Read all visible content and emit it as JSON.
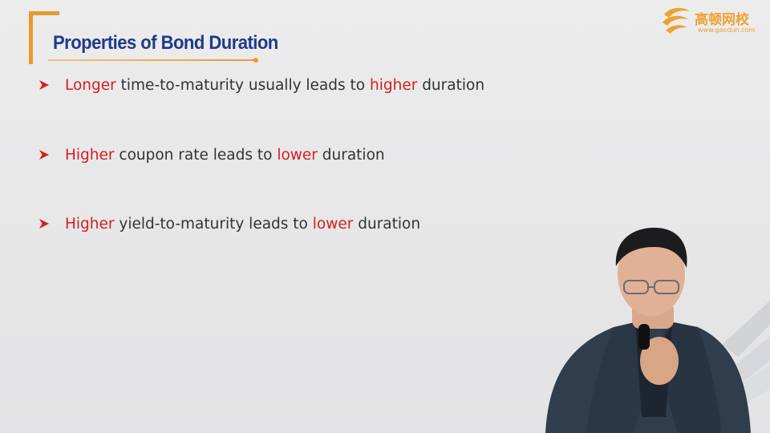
{
  "slide": {
    "title": "Properties of Bond Duration",
    "accent_color": "#e89a2a",
    "title_color": "#1f3b88",
    "emphasis_color": "#d31f1f"
  },
  "logo": {
    "name": "高顿网校",
    "url": "www.gaodun.com"
  },
  "bullets": [
    {
      "marker": "arrow-bullet-icon",
      "parts": [
        {
          "text": "Longer",
          "emphasis": true
        },
        {
          "text": " time-to-maturity usually leads to ",
          "emphasis": false
        },
        {
          "text": "higher",
          "emphasis": true
        },
        {
          "text": " duration",
          "emphasis": false
        }
      ]
    },
    {
      "marker": "arrow-bullet-icon",
      "parts": [
        {
          "text": "Higher",
          "emphasis": true
        },
        {
          "text": " coupon rate leads to ",
          "emphasis": false
        },
        {
          "text": "lower",
          "emphasis": true
        },
        {
          "text": " duration",
          "emphasis": false
        }
      ]
    },
    {
      "marker": "arrow-bullet-icon",
      "parts": [
        {
          "text": "Higher",
          "emphasis": true
        },
        {
          "text": " yield-to-maturity leads to ",
          "emphasis": false
        },
        {
          "text": "lower",
          "emphasis": true
        },
        {
          "text": " duration",
          "emphasis": false
        }
      ]
    }
  ],
  "presenter": {
    "icon": "presenter-video-icon"
  }
}
